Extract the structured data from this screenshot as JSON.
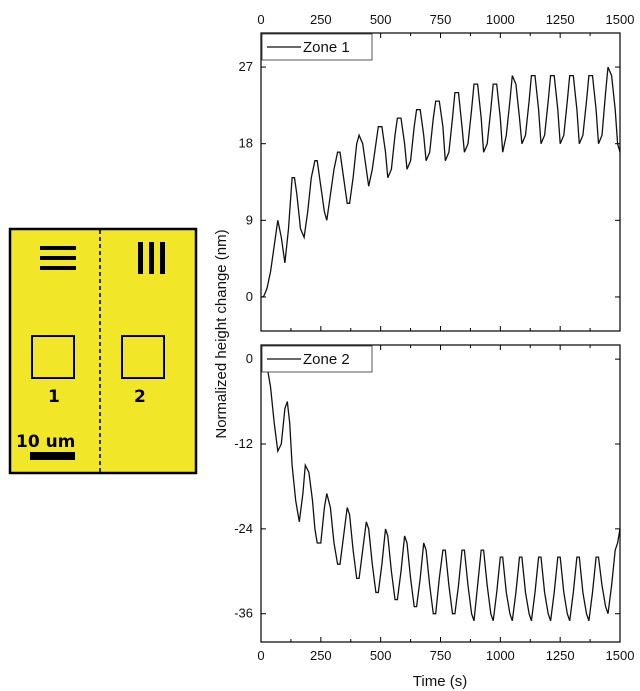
{
  "schematic": {
    "background_color": "#f2e629",
    "zone_labels": [
      "1",
      "2"
    ],
    "scale_label": "10 um"
  },
  "chart_data": [
    {
      "type": "line",
      "legend": "Zone 1",
      "xlim": [
        0,
        1500
      ],
      "ylim": [
        -4,
        31
      ],
      "xticks": [
        0,
        250,
        500,
        750,
        1000,
        1250,
        1500
      ],
      "yticks": [
        0,
        9,
        18,
        27
      ],
      "top_axis_labels": true,
      "bottom_axis_labels": false,
      "series": [
        {
          "name": "Zone 1",
          "x": [
            0,
            10,
            18,
            25,
            40,
            55,
            70,
            85,
            100,
            115,
            125,
            130,
            135,
            140,
            150,
            165,
            180,
            195,
            210,
            225,
            235,
            250,
            265,
            275,
            290,
            305,
            320,
            330,
            345,
            360,
            370,
            385,
            400,
            410,
            425,
            440,
            450,
            465,
            480,
            490,
            505,
            520,
            530,
            545,
            560,
            570,
            585,
            600,
            610,
            625,
            640,
            650,
            665,
            680,
            690,
            705,
            720,
            730,
            745,
            760,
            770,
            785,
            800,
            810,
            825,
            840,
            850,
            865,
            880,
            890,
            905,
            920,
            930,
            945,
            960,
            970,
            985,
            1000,
            1010,
            1025,
            1040,
            1050,
            1065,
            1080,
            1090,
            1105,
            1120,
            1130,
            1145,
            1160,
            1170,
            1185,
            1200,
            1210,
            1225,
            1240,
            1250,
            1265,
            1280,
            1290,
            1305,
            1320,
            1330,
            1345,
            1360,
            1370,
            1385,
            1400,
            1410,
            1425,
            1440,
            1450,
            1465,
            1480,
            1490,
            1500
          ],
          "y": [
            0,
            0,
            0.5,
            1,
            3,
            6,
            9,
            7,
            4,
            8,
            12,
            14,
            14,
            14,
            12,
            8,
            7,
            10,
            14,
            16,
            16,
            13,
            10,
            9,
            12,
            15,
            17,
            17,
            14,
            11,
            11,
            14,
            18,
            19,
            18,
            15,
            13,
            15,
            18,
            20,
            20,
            17,
            14,
            15,
            19,
            21,
            21,
            18,
            15,
            16,
            20,
            22,
            22,
            19,
            16,
            17,
            21,
            23,
            23,
            20,
            16,
            17,
            21,
            24,
            24,
            20,
            17,
            18,
            22,
            25,
            25,
            21,
            17,
            18,
            22,
            25,
            25,
            21,
            17,
            19,
            23,
            26,
            25,
            21,
            18,
            19,
            23,
            26,
            26,
            22,
            18,
            19,
            23,
            26,
            26,
            22,
            18,
            19,
            23,
            26,
            26,
            22,
            18,
            19,
            23,
            26,
            26,
            22,
            18,
            19,
            24,
            27,
            26,
            22,
            18,
            17
          ]
        }
      ]
    },
    {
      "type": "line",
      "legend": "Zone 2",
      "xlim": [
        0,
        1500
      ],
      "ylim": [
        -40,
        2
      ],
      "xticks": [
        0,
        250,
        500,
        750,
        1000,
        1250,
        1500
      ],
      "yticks": [
        0,
        -12,
        -24,
        -36
      ],
      "xlabel": "Time (s)",
      "top_axis_labels": false,
      "bottom_axis_labels": true,
      "series": [
        {
          "name": "Zone 2",
          "x": [
            0,
            10,
            25,
            40,
            55,
            70,
            85,
            100,
            110,
            120,
            130,
            145,
            160,
            175,
            185,
            200,
            215,
            225,
            235,
            250,
            265,
            275,
            290,
            305,
            320,
            330,
            345,
            360,
            370,
            385,
            400,
            410,
            425,
            440,
            450,
            465,
            480,
            490,
            505,
            520,
            530,
            545,
            560,
            570,
            585,
            600,
            610,
            625,
            640,
            650,
            665,
            680,
            690,
            705,
            720,
            730,
            745,
            760,
            770,
            785,
            800,
            810,
            825,
            840,
            850,
            865,
            880,
            890,
            905,
            920,
            930,
            945,
            960,
            970,
            985,
            1000,
            1010,
            1025,
            1040,
            1050,
            1065,
            1080,
            1090,
            1105,
            1120,
            1130,
            1145,
            1160,
            1170,
            1185,
            1200,
            1210,
            1225,
            1240,
            1250,
            1265,
            1280,
            1290,
            1305,
            1320,
            1330,
            1345,
            1360,
            1370,
            1385,
            1400,
            1410,
            1425,
            1440,
            1450,
            1465,
            1480,
            1490,
            1500
          ],
          "y": [
            0,
            0,
            -1,
            -4,
            -9,
            -13,
            -12,
            -7,
            -6,
            -9,
            -15,
            -20,
            -23,
            -19,
            -15,
            -16,
            -20,
            -24,
            -26,
            -26,
            -21,
            -19,
            -21,
            -26,
            -29,
            -29,
            -25,
            -21,
            -22,
            -27,
            -31,
            -31,
            -27,
            -23,
            -24,
            -29,
            -33,
            -33,
            -29,
            -24,
            -25,
            -30,
            -34,
            -34,
            -30,
            -25,
            -26,
            -31,
            -35,
            -35,
            -31,
            -26,
            -27,
            -32,
            -36,
            -36,
            -31,
            -27,
            -27,
            -32,
            -36,
            -36,
            -32,
            -27,
            -27,
            -32,
            -36,
            -37,
            -32,
            -27,
            -27,
            -32,
            -36,
            -37,
            -33,
            -28,
            -28,
            -33,
            -36,
            -37,
            -33,
            -28,
            -28,
            -33,
            -36,
            -37,
            -33,
            -28,
            -28,
            -33,
            -36,
            -37,
            -33,
            -28,
            -28,
            -33,
            -36,
            -37,
            -33,
            -28,
            -28,
            -33,
            -36,
            -37,
            -33,
            -28,
            -28,
            -32,
            -35,
            -36,
            -32,
            -27,
            -26,
            -24
          ]
        }
      ]
    }
  ],
  "shared_ylabel": "Normalized height change (nm)"
}
